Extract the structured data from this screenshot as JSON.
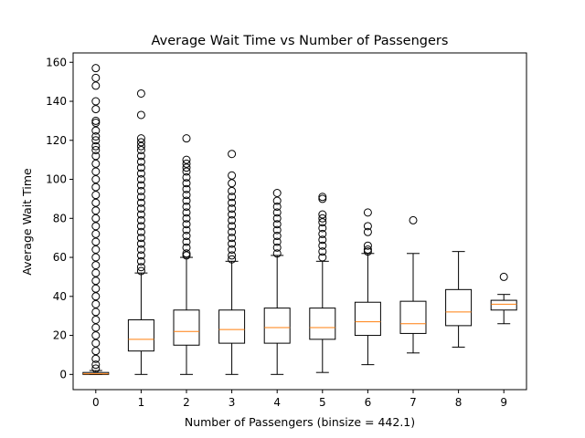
{
  "chart_data": {
    "type": "box",
    "title": "Average Wait Time vs Number of Passengers",
    "xlabel": "Number of Passengers (binsize = 442.1)",
    "ylabel": "Average Wait Time",
    "ylim": [
      -7.8,
      164.8
    ],
    "xlim": [
      -0.5,
      9.5
    ],
    "y_ticks": [
      0,
      20,
      40,
      60,
      80,
      100,
      120,
      140,
      160
    ],
    "x_ticks": [
      0,
      1,
      2,
      3,
      4,
      5,
      6,
      7,
      8,
      9
    ],
    "grid": false,
    "colors": {
      "box": "#000000",
      "median": "#ff7f0e",
      "flier": "#000000"
    },
    "boxes": [
      {
        "x": 0,
        "whisker_low": 0,
        "q1": 0,
        "median": 0.3,
        "q3": 1.0,
        "whisker_high": 2.0,
        "fliers": [
          157,
          152,
          148,
          140,
          136,
          130,
          129,
          125,
          122,
          120,
          117,
          115,
          112,
          108,
          104,
          100,
          96,
          92,
          88,
          84,
          80,
          76,
          72,
          68,
          64,
          60,
          56,
          52,
          48,
          44,
          40,
          36,
          32,
          28,
          24,
          20,
          16,
          12,
          8,
          5,
          3
        ]
      },
      {
        "x": 1,
        "whisker_low": 0,
        "q1": 12,
        "median": 18,
        "q3": 28,
        "whisker_high": 52,
        "fliers": [
          144,
          133,
          121,
          119,
          117,
          115,
          112,
          109,
          106,
          103,
          100,
          97,
          94,
          91,
          88,
          85,
          82,
          79,
          76,
          73,
          70,
          67,
          64,
          61,
          58,
          55,
          53
        ]
      },
      {
        "x": 2,
        "whisker_low": 0,
        "q1": 15,
        "median": 22,
        "q3": 33,
        "whisker_high": 60,
        "fliers": [
          121,
          110,
          108,
          106,
          104,
          101,
          98,
          95,
          92,
          89,
          86,
          83,
          80,
          77,
          74,
          71,
          68,
          65,
          62,
          61
        ]
      },
      {
        "x": 3,
        "whisker_low": 0,
        "q1": 16,
        "median": 23,
        "q3": 33,
        "whisker_high": 58,
        "fliers": [
          113,
          102,
          98,
          94,
          91,
          88,
          85,
          82,
          79,
          76,
          73,
          70,
          67,
          64,
          61,
          59
        ]
      },
      {
        "x": 4,
        "whisker_low": 0,
        "q1": 16,
        "median": 24,
        "q3": 34,
        "whisker_high": 61,
        "fliers": [
          93,
          89,
          86,
          83,
          80,
          77,
          74,
          71,
          68,
          65,
          62
        ]
      },
      {
        "x": 5,
        "whisker_low": 1,
        "q1": 18,
        "median": 24,
        "q3": 34,
        "whisker_high": 58,
        "fliers": [
          91,
          90,
          82,
          80,
          78,
          75,
          72,
          69,
          66,
          63,
          60
        ]
      },
      {
        "x": 6,
        "whisker_low": 5,
        "q1": 20,
        "median": 27,
        "q3": 37,
        "whisker_high": 62,
        "fliers": [
          83,
          76,
          73,
          66,
          64,
          63
        ]
      },
      {
        "x": 7,
        "whisker_low": 11,
        "q1": 21,
        "median": 26,
        "q3": 37.5,
        "whisker_high": 62,
        "fliers": [
          79
        ]
      },
      {
        "x": 8,
        "whisker_low": 14,
        "q1": 25,
        "median": 32,
        "q3": 43.5,
        "whisker_high": 63,
        "fliers": []
      },
      {
        "x": 9,
        "whisker_low": 26,
        "q1": 33,
        "median": 36,
        "q3": 38,
        "whisker_high": 41,
        "fliers": [
          50
        ]
      }
    ]
  }
}
